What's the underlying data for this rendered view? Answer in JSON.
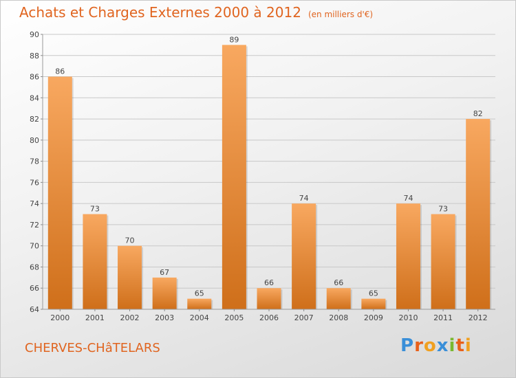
{
  "header": {
    "title": "Achats et Charges Externes 2000 à 2012",
    "unit": "(en milliers d'€)"
  },
  "footer": {
    "commune": "CHERVES-CHâTELARS",
    "logo_letters": [
      "P",
      "r",
      "o",
      "x",
      "i",
      "t",
      "i"
    ],
    "logo_colors": [
      "#3a8fd8",
      "#e8601a",
      "#f0a020",
      "#3a8fd8",
      "#7ab830",
      "#e8601a",
      "#f0a020"
    ]
  },
  "colors": {
    "bar_top": "#f8a860",
    "bar_bottom": "#cf6f1a",
    "text": "#444444",
    "grid": "#c8c8c8",
    "accent": "#e0641f"
  },
  "chart_data": {
    "type": "bar",
    "categories": [
      "2000",
      "2001",
      "2002",
      "2003",
      "2004",
      "2005",
      "2006",
      "2007",
      "2008",
      "2009",
      "2010",
      "2011",
      "2012"
    ],
    "values": [
      86,
      73,
      70,
      67,
      65,
      89,
      66,
      74,
      66,
      65,
      74,
      73,
      82
    ],
    "title": "Achats et Charges Externes 2000 à 2012",
    "xlabel": "",
    "ylabel": "",
    "ylim": [
      64,
      90
    ],
    "yticks": [
      64,
      66,
      68,
      70,
      72,
      74,
      76,
      78,
      80,
      82,
      84,
      86,
      88,
      90
    ],
    "grid": true,
    "legend": "none"
  }
}
